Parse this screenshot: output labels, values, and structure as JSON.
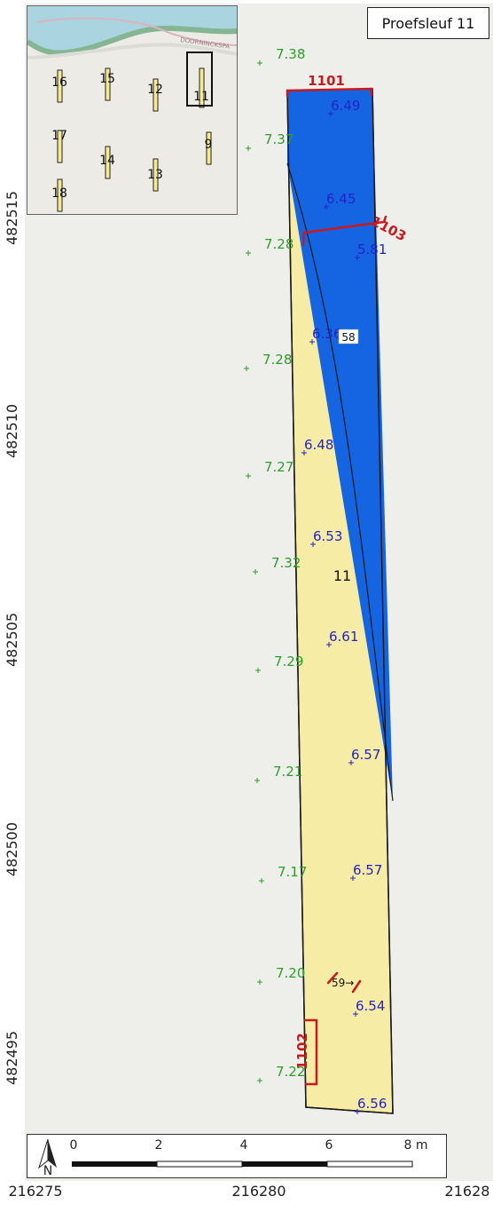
{
  "title": "Proefsleuf 11",
  "colors": {
    "background": "#eeeeea",
    "trench_fill": "#f7eca5",
    "blue_feature": "#1565e3",
    "section_line": "#c8191e",
    "elevation_surface": "#2e9e2a",
    "elevation_trench": "#2323c8"
  },
  "axes": {
    "y_ticks": [
      "482515",
      "482510",
      "482505",
      "482500",
      "482495"
    ],
    "x_ticks": [
      "216275",
      "216280",
      "21628"
    ]
  },
  "trench_label": "11",
  "feature_labels": [
    {
      "label": "58",
      "marker": "white-box"
    },
    {
      "label": "59",
      "marker": "crosshair"
    }
  ],
  "sections": [
    {
      "id": "1101"
    },
    {
      "id": "1103"
    },
    {
      "id": "1102"
    }
  ],
  "surface_heights": [
    "7.38",
    "7.37",
    "7.28",
    "7.28",
    "7.27",
    "7.32",
    "7.29",
    "7.21",
    "7.17",
    "7.20",
    "7.22"
  ],
  "trench_heights": [
    "6.49",
    "6.45",
    "5.81",
    "6.36",
    "6.48",
    "6.53",
    "6.61",
    "6.57",
    "6.57",
    "6.54",
    "6.56"
  ],
  "inset": {
    "street": "DOORNINCKSPA",
    "trenches": [
      {
        "label": "16",
        "selected": false
      },
      {
        "label": "15",
        "selected": false
      },
      {
        "label": "12",
        "selected": false
      },
      {
        "label": "11",
        "selected": true
      },
      {
        "label": "17",
        "selected": false
      },
      {
        "label": "14",
        "selected": false
      },
      {
        "label": "9",
        "selected": false
      },
      {
        "label": "13",
        "selected": false
      },
      {
        "label": "18",
        "selected": false
      }
    ]
  },
  "scalebar": {
    "labels": [
      "0",
      "2",
      "4",
      "6",
      "8 m"
    ],
    "north": "N"
  }
}
